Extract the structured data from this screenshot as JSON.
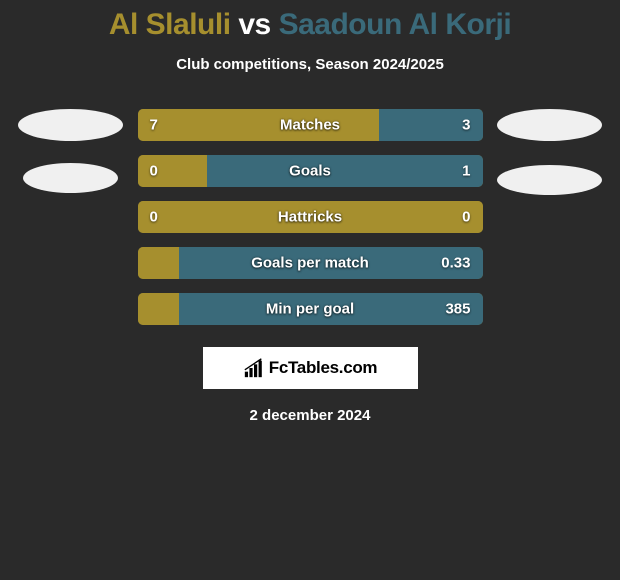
{
  "header": {
    "player1": "Al Slaluli",
    "vs": "vs",
    "player2": "Saadoun Al Korji",
    "player1_color": "#a68f2e",
    "vs_color": "#ffffff",
    "player2_color": "#3a6a7a"
  },
  "subtitle": "Club competitions, Season 2024/2025",
  "stats": [
    {
      "label": "Matches",
      "left_value": "7",
      "right_value": "3",
      "left_pct": 70,
      "right_pct": 30,
      "left_color": "#a68f2e",
      "right_color": "#3a6a7a"
    },
    {
      "label": "Goals",
      "left_value": "0",
      "right_value": "1",
      "left_pct": 20,
      "right_pct": 80,
      "left_color": "#a68f2e",
      "right_color": "#3a6a7a"
    },
    {
      "label": "Hattricks",
      "left_value": "0",
      "right_value": "0",
      "left_pct": 100,
      "right_pct": 0,
      "left_color": "#a68f2e",
      "right_color": "#3a6a7a"
    },
    {
      "label": "Goals per match",
      "left_value": "",
      "right_value": "0.33",
      "left_pct": 12,
      "right_pct": 88,
      "left_color": "#a68f2e",
      "right_color": "#3a6a7a"
    },
    {
      "label": "Min per goal",
      "left_value": "",
      "right_value": "385",
      "left_pct": 12,
      "right_pct": 88,
      "left_color": "#a68f2e",
      "right_color": "#3a6a7a"
    }
  ],
  "bar_border_radius": 5,
  "logo": {
    "icon_name": "bar-chart-icon",
    "text": "FcTables.com"
  },
  "date": "2 december 2024",
  "background_color": "#2a2a2a",
  "avatar_bg": "#f0f0f0"
}
